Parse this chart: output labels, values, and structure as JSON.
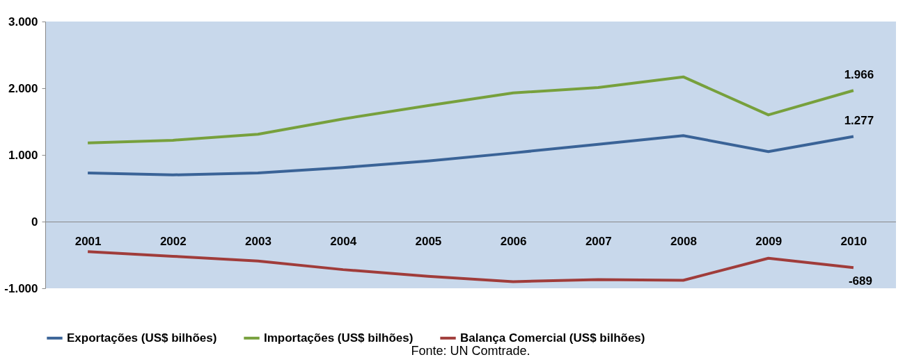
{
  "chart_data": {
    "type": "line",
    "categories": [
      "2001",
      "2002",
      "2003",
      "2004",
      "2005",
      "2006",
      "2007",
      "2008",
      "2009",
      "2010"
    ],
    "ylim": [
      -1000,
      3000
    ],
    "yticks": [
      {
        "value": -1000,
        "label": "-1.000"
      },
      0,
      {
        "value": 1000,
        "label": "1.000"
      },
      {
        "value": 2000,
        "label": "2.000"
      },
      {
        "value": 3000,
        "label": "3.000"
      }
    ],
    "series": [
      {
        "name": "Exportações (US$ bilhões)",
        "color": "#3a6397",
        "values": [
          730,
          700,
          730,
          810,
          910,
          1030,
          1160,
          1290,
          1050,
          1277
        ],
        "value_labels": [
          null,
          null,
          null,
          null,
          null,
          null,
          null,
          null,
          null,
          "1.277"
        ]
      },
      {
        "name": "Importações (US$ bilhões)",
        "color": "#77a03c",
        "values": [
          1180,
          1220,
          1310,
          1540,
          1740,
          1930,
          2010,
          2170,
          1600,
          1966
        ],
        "value_labels": [
          null,
          null,
          null,
          null,
          null,
          null,
          null,
          null,
          null,
          "1.966"
        ]
      },
      {
        "name": "Balança Comercial (US$ bilhões)",
        "color": "#a03c3a",
        "values": [
          -450,
          -520,
          -590,
          -720,
          -820,
          -900,
          -870,
          -880,
          -550,
          -689
        ],
        "value_labels": [
          null,
          null,
          null,
          null,
          null,
          null,
          null,
          null,
          null,
          "-689"
        ]
      }
    ],
    "grid": false,
    "legend": "bottom",
    "marker": "none",
    "line_style": "solid",
    "annotations": [
      "Fonte: UN Comtrade."
    ]
  }
}
